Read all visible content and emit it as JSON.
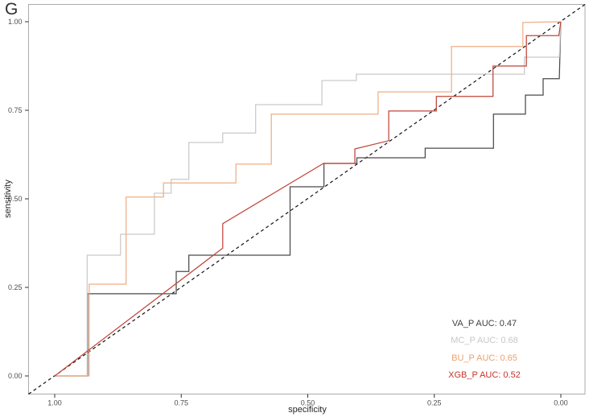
{
  "figure": {
    "panel_label": "G"
  },
  "chart_data": {
    "type": "line",
    "subtype": "roc-curves",
    "title": "G",
    "xlabel": "specificity",
    "ylabel": "sensitivity",
    "x_axis_reversed": true,
    "xlim": [
      1.0,
      0.0
    ],
    "ylim": [
      0.0,
      1.0
    ],
    "grid": false,
    "panel_border_color": "#ababab",
    "tick_color": "#2f2f2f",
    "tick_label_color": "#4d4d4d",
    "x_ticks": [
      {
        "value": 1.0,
        "label": "1.00"
      },
      {
        "value": 0.75,
        "label": "0.75"
      },
      {
        "value": 0.5,
        "label": "0.50"
      },
      {
        "value": 0.25,
        "label": "0.25"
      },
      {
        "value": 0.0,
        "label": "0.00"
      }
    ],
    "y_ticks": [
      {
        "value": 0.0,
        "label": "0.00"
      },
      {
        "value": 0.25,
        "label": "0.25"
      },
      {
        "value": 0.5,
        "label": "0.50"
      },
      {
        "value": 0.75,
        "label": "0.75"
      },
      {
        "value": 1.0,
        "label": "1.00"
      }
    ],
    "reference_line": {
      "type": "diagonal-chance-line",
      "color": "#111111",
      "dash": "4 3.5"
    },
    "legend_position": "bottom-right-inside",
    "series": [
      {
        "name": "VA_P",
        "auc": 0.47,
        "legend_label": "VA_P AUC: 0.47",
        "color": "#4a4a4a",
        "legend_color": "#3e3e3e",
        "points": [
          [
            1.0,
            0.0
          ],
          [
            0.935,
            0.0
          ],
          [
            0.935,
            0.232
          ],
          [
            0.76,
            0.232
          ],
          [
            0.76,
            0.295
          ],
          [
            0.735,
            0.295
          ],
          [
            0.735,
            0.341
          ],
          [
            0.535,
            0.341
          ],
          [
            0.535,
            0.534
          ],
          [
            0.468,
            0.534
          ],
          [
            0.468,
            0.6
          ],
          [
            0.403,
            0.6
          ],
          [
            0.403,
            0.616
          ],
          [
            0.268,
            0.616
          ],
          [
            0.268,
            0.643
          ],
          [
            0.133,
            0.643
          ],
          [
            0.133,
            0.739
          ],
          [
            0.07,
            0.739
          ],
          [
            0.07,
            0.793
          ],
          [
            0.035,
            0.793
          ],
          [
            0.035,
            0.839
          ],
          [
            0.003,
            0.839
          ],
          [
            0.0,
            1.0
          ]
        ]
      },
      {
        "name": "MC_P",
        "auc": 0.68,
        "legend_label": "MC_P AUC: 0.68",
        "color": "#c9c9c9",
        "legend_color": "#c7c7c7",
        "points": [
          [
            1.0,
            0.0
          ],
          [
            0.936,
            0.0
          ],
          [
            0.936,
            0.341
          ],
          [
            0.87,
            0.341
          ],
          [
            0.87,
            0.4
          ],
          [
            0.803,
            0.4
          ],
          [
            0.803,
            0.516
          ],
          [
            0.77,
            0.516
          ],
          [
            0.77,
            0.555
          ],
          [
            0.735,
            0.555
          ],
          [
            0.735,
            0.659
          ],
          [
            0.668,
            0.659
          ],
          [
            0.668,
            0.686
          ],
          [
            0.603,
            0.686
          ],
          [
            0.603,
            0.766
          ],
          [
            0.472,
            0.766
          ],
          [
            0.472,
            0.834
          ],
          [
            0.404,
            0.834
          ],
          [
            0.404,
            0.852
          ],
          [
            0.072,
            0.852
          ],
          [
            0.072,
            0.9
          ],
          [
            0.003,
            0.9
          ],
          [
            0.0,
            1.0
          ]
        ]
      },
      {
        "name": "BU_P",
        "auc": 0.65,
        "legend_label": "BU_P AUC: 0.65",
        "color": "#efae85",
        "legend_color": "#eba172",
        "points": [
          [
            1.0,
            0.0
          ],
          [
            0.932,
            0.0
          ],
          [
            0.932,
            0.259
          ],
          [
            0.859,
            0.259
          ],
          [
            0.859,
            0.505
          ],
          [
            0.785,
            0.505
          ],
          [
            0.785,
            0.545
          ],
          [
            0.642,
            0.545
          ],
          [
            0.642,
            0.598
          ],
          [
            0.572,
            0.598
          ],
          [
            0.572,
            0.739
          ],
          [
            0.361,
            0.739
          ],
          [
            0.361,
            0.802
          ],
          [
            0.216,
            0.802
          ],
          [
            0.216,
            0.93
          ],
          [
            0.075,
            0.93
          ],
          [
            0.075,
            0.998
          ],
          [
            0.0,
            1.0
          ]
        ]
      },
      {
        "name": "XGB_P",
        "auc": 0.52,
        "legend_label": "XGB_P AUC: 0.52",
        "color": "#c0453a",
        "legend_color": "#c43529",
        "points": [
          [
            1.0,
            0.0
          ],
          [
            0.668,
            0.361
          ],
          [
            0.668,
            0.43
          ],
          [
            0.469,
            0.6
          ],
          [
            0.407,
            0.6
          ],
          [
            0.407,
            0.641
          ],
          [
            0.34,
            0.664
          ],
          [
            0.34,
            0.748
          ],
          [
            0.246,
            0.748
          ],
          [
            0.246,
            0.789
          ],
          [
            0.134,
            0.789
          ],
          [
            0.134,
            0.875
          ],
          [
            0.068,
            0.875
          ],
          [
            0.068,
            0.961
          ],
          [
            0.004,
            0.961
          ],
          [
            0.0,
            1.0
          ]
        ]
      }
    ]
  }
}
